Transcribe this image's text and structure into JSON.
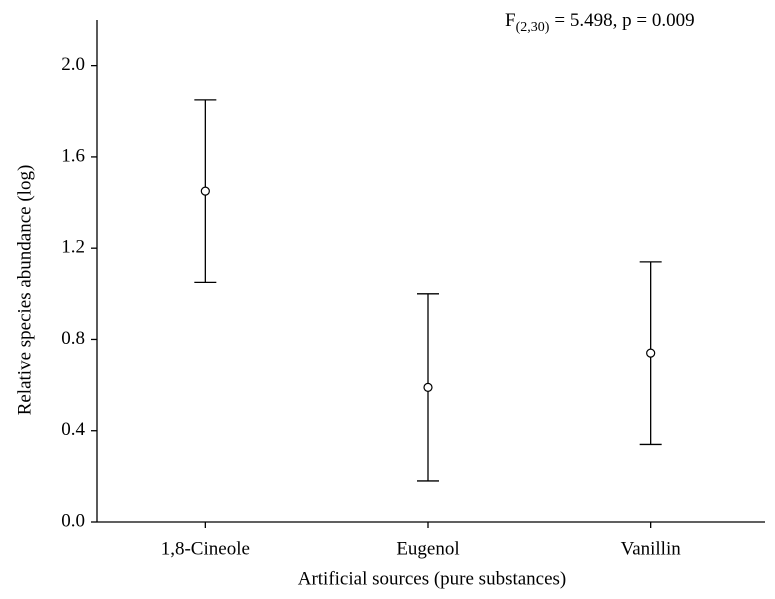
{
  "chart_data": {
    "type": "errorbar",
    "annotation": {
      "stat": "F",
      "subscript": "(2,30)",
      "text": "= 5.498, p = 0.009"
    },
    "xlabel": "Artificial sources (pure  substances)",
    "ylabel": "Relative species abundance (log)",
    "categories": [
      "1,8-Cineole",
      "Eugenol",
      "Vanillin"
    ],
    "values": [
      1.45,
      0.59,
      0.74
    ],
    "errors": [
      0.4,
      0.41,
      0.4
    ],
    "color": "#000000",
    "ylim": [
      0,
      2.2
    ],
    "yticks": [
      {
        "value": 0,
        "label": "0.0"
      },
      0.4,
      0.8,
      1.2,
      1.6,
      {
        "value": 2,
        "label": "2.0"
      }
    ]
  }
}
